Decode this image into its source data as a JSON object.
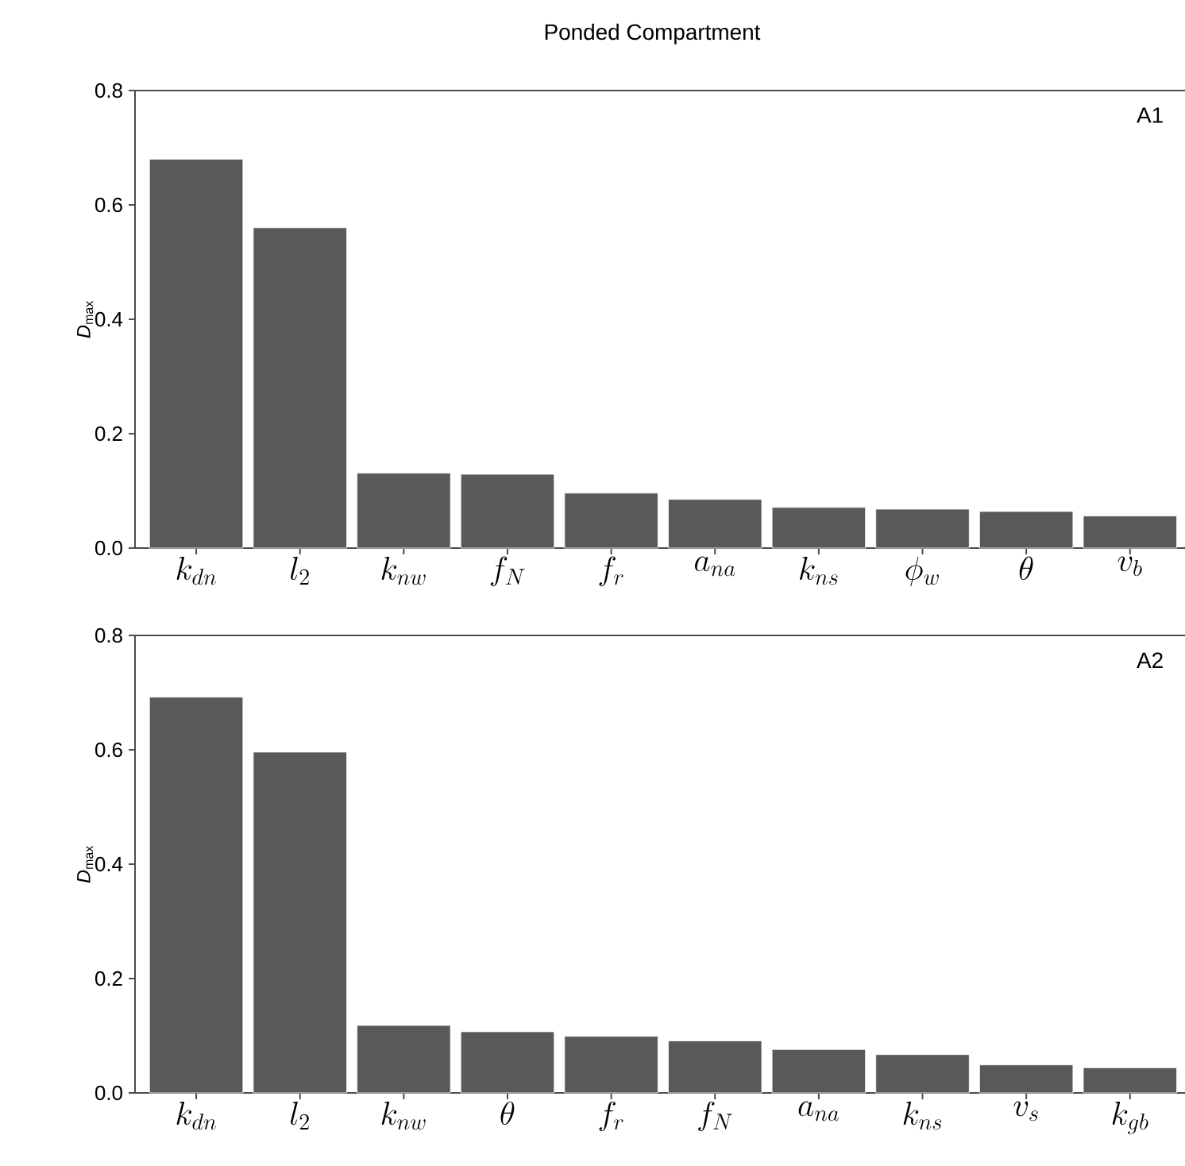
{
  "chart_data": [
    {
      "type": "bar",
      "title": "Ponded Compartment",
      "ylabel": "*D*$_{max}$",
      "annotations": [
        "A1"
      ],
      "color": "#595959",
      "categories": [
        "k_{dn}",
        "l_2",
        "k_{nw}",
        "f_N",
        "f_r",
        "a_{na}",
        "k_{ns}",
        "\\phi_w",
        "\\theta",
        "v_b"
      ],
      "values": [
        0.68,
        0.56,
        0.131,
        0.129,
        0.096,
        0.085,
        0.071,
        0.068,
        0.064,
        0.056
      ],
      "ylim": [
        0,
        0.8
      ],
      "yticks": [
        {
          "value": 0,
          "label": "0.0"
        },
        0.2,
        0.4,
        0.6,
        0.8
      ],
      "grid": false
    },
    {
      "type": "bar",
      "ylabel": "*D*$_{max}$",
      "annotations": [
        "A2"
      ],
      "color": "#595959",
      "categories": [
        "k_{dn}",
        "l_2",
        "k_{nw}",
        "\\theta",
        "f_r",
        "f_N",
        "a_{na}",
        "k_{ns}",
        "v_s",
        "k_{gb}"
      ],
      "values": [
        0.692,
        0.596,
        0.118,
        0.107,
        0.099,
        0.091,
        0.076,
        0.067,
        0.049,
        0.044
      ],
      "ylim": [
        0,
        0.8
      ],
      "yticks": [
        {
          "value": 0,
          "label": "0.0"
        },
        0.2,
        0.4,
        0.6,
        0.8
      ],
      "grid": false
    }
  ]
}
